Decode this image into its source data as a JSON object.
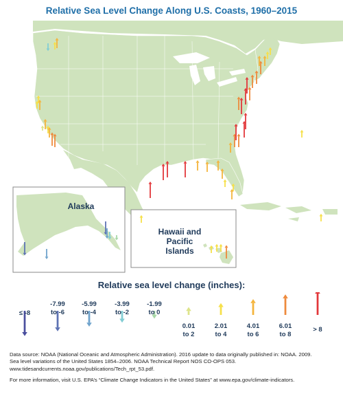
{
  "title": "Relative Sea Level Change Along U.S. Coasts, 1960–2015",
  "insets": {
    "alaska": "Alaska",
    "hawaii": "Hawaii and Pacific Islands"
  },
  "legend": {
    "title": "Relative sea level change (inches):",
    "bins": [
      {
        "label": "≤ -8",
        "color": "#4a4f9e",
        "direction": "down",
        "size": 5
      },
      {
        "label": "-7.99 to -6",
        "color": "#5d72b3",
        "direction": "down",
        "size": 4
      },
      {
        "label": "-5.99 to -4",
        "color": "#6fa3cc",
        "direction": "down",
        "size": 3
      },
      {
        "label": "-3.99 to -2",
        "color": "#82cdd4",
        "direction": "down",
        "size": 2
      },
      {
        "label": "-1.99 to 0",
        "color": "#a8d8a8",
        "direction": "down",
        "size": 1
      },
      {
        "label": "0.01 to 2",
        "color": "#dde48a",
        "direction": "up",
        "size": 1
      },
      {
        "label": "2.01 to 4",
        "color": "#f6e04a",
        "direction": "up",
        "size": 2
      },
      {
        "label": "4.01 to 6",
        "color": "#f4b43c",
        "direction": "up",
        "size": 3
      },
      {
        "label": "6.01 to 8",
        "color": "#ee8a3c",
        "direction": "up",
        "size": 4
      },
      {
        "label": "> 8",
        "color": "#e2373a",
        "direction": "up",
        "size": 5
      }
    ]
  },
  "colors": {
    "land": "#cfe3bd",
    "border": "#ffffff",
    "inset_border": "#8a8a8a"
  },
  "source": {
    "line1": "Data source: NOAA (National Oceanic and Atmospheric Administration). 2016 update to data originally published in: NOAA. 2009.",
    "line2": "Sea level variations of the United States 1854–2006. NOAA Technical Report NOS CO-OPS 053.",
    "line3": "www.tidesandcurrents.noaa.gov/publications/Tech_rpt_53.pdf.",
    "more": "For more information, visit U.S. EPA’s “Climate Change Indicators in the United States” at www.epa.gov/climate-indicators."
  }
}
